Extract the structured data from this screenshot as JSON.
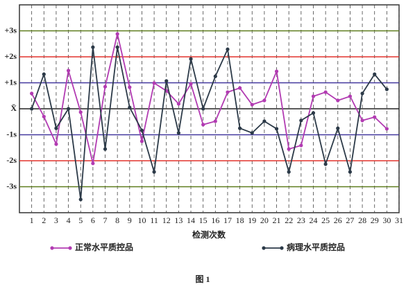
{
  "chart_data": {
    "type": "line",
    "x_label": "检测次数",
    "caption": "图 1",
    "x": [
      1,
      2,
      3,
      4,
      5,
      6,
      7,
      8,
      9,
      10,
      11,
      12,
      13,
      14,
      15,
      16,
      17,
      18,
      19,
      20,
      21,
      22,
      23,
      24,
      25,
      26,
      27,
      28,
      29,
      30
    ],
    "xlim": [
      0,
      31
    ],
    "xticks": [
      1,
      2,
      3,
      4,
      5,
      6,
      7,
      8,
      9,
      10,
      11,
      12,
      13,
      14,
      15,
      16,
      17,
      18,
      19,
      20,
      21,
      22,
      23,
      24,
      25,
      26,
      27,
      28,
      29,
      30,
      31
    ],
    "ylim": [
      -4,
      4
    ],
    "yticks": [
      {
        "value": 3,
        "label": "+3s"
      },
      {
        "value": 2,
        "label": "+2s"
      },
      {
        "value": 1,
        "label": "+1s"
      },
      {
        "value": 0,
        "label": "X̄"
      },
      {
        "value": -1,
        "label": "-1s"
      },
      {
        "value": -2,
        "label": "-2s"
      },
      {
        "value": -3,
        "label": "-3s"
      }
    ],
    "ytick_colors": [
      "#5e7d1e",
      "#e2322c",
      "#43389e",
      "#222222",
      "#43389e",
      "#e2322c",
      "#5e7d1e"
    ],
    "x_grid": true,
    "series": [
      {
        "name": "正常水平质控品",
        "color": "#b23bb2",
        "values": [
          0.59,
          -0.3,
          -1.36,
          1.47,
          -0.13,
          -2.1,
          0.85,
          2.88,
          0.83,
          -1.25,
          0.99,
          0.69,
          0.19,
          0.96,
          -0.61,
          -0.48,
          0.64,
          0.8,
          0.16,
          0.32,
          1.44,
          -1.55,
          -1.41,
          0.48,
          0.64,
          0.32,
          0.48,
          -0.45,
          -0.32,
          -0.77
        ]
      },
      {
        "name": "病理水平质控品",
        "color": "#2c3a48",
        "values": [
          0,
          1.33,
          -0.75,
          0,
          -3.49,
          2.37,
          -1.55,
          2.37,
          0.05,
          -0.83,
          -2.43,
          1.07,
          -0.93,
          1.92,
          0,
          1.25,
          2.29,
          -0.75,
          -0.93,
          -0.48,
          -0.77,
          -2.43,
          -0.45,
          -0.16,
          -2.13,
          -0.75,
          -2.43,
          0.59,
          1.33,
          0.75
        ]
      }
    ]
  }
}
